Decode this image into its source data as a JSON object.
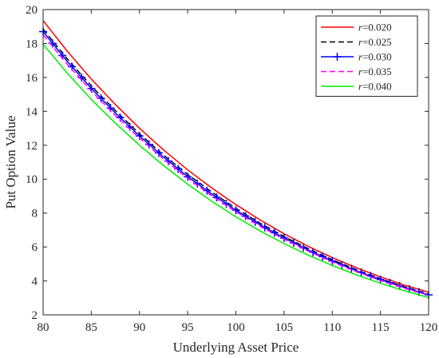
{
  "chart_data": {
    "type": "line",
    "title": "",
    "xlabel": "Underlying Asset Price",
    "ylabel": "Put Option Value",
    "xlim": [
      80,
      120
    ],
    "ylim": [
      2,
      20
    ],
    "x_ticks": [
      80,
      85,
      90,
      95,
      100,
      105,
      110,
      115,
      120
    ],
    "y_ticks": [
      2,
      4,
      6,
      8,
      10,
      12,
      14,
      16,
      18,
      20
    ],
    "grid": false,
    "legend_position": "top-right",
    "x": [
      80,
      82.5,
      85,
      87.5,
      90,
      92.5,
      95,
      97.5,
      100,
      102.5,
      105,
      107.5,
      110,
      112.5,
      115,
      117.5,
      120
    ],
    "series": [
      {
        "name": "r=0.020",
        "color": "#ff0000",
        "dash": "solid",
        "marker": "none",
        "values": [
          19.35,
          17.55,
          15.9,
          14.4,
          13.0,
          11.72,
          10.55,
          9.48,
          8.5,
          7.6,
          6.78,
          6.04,
          5.38,
          4.78,
          4.24,
          3.75,
          3.33
        ]
      },
      {
        "name": "r=0.025",
        "color": "#000000",
        "dash": "dashed",
        "marker": "none",
        "values": [
          18.85,
          17.1,
          15.5,
          14.04,
          12.68,
          11.42,
          10.28,
          9.24,
          8.28,
          7.41,
          6.62,
          5.9,
          5.25,
          4.66,
          4.13,
          3.65,
          3.22
        ]
      },
      {
        "name": "r=0.030",
        "color": "#0000ff",
        "dash": "solid",
        "marker": "plus",
        "values": [
          18.7,
          16.95,
          15.35,
          13.9,
          12.55,
          11.3,
          10.15,
          9.12,
          8.17,
          7.31,
          6.53,
          5.82,
          5.18,
          4.6,
          4.08,
          3.61,
          3.18
        ]
      },
      {
        "name": "r=0.035",
        "color": "#ff00ff",
        "dash": "dashed",
        "marker": "none",
        "values": [
          18.5,
          16.78,
          15.2,
          13.75,
          12.42,
          11.18,
          10.05,
          9.02,
          8.08,
          7.23,
          6.46,
          5.76,
          5.12,
          4.55,
          4.03,
          3.57,
          3.15
        ]
      },
      {
        "name": "r=0.040",
        "color": "#00ee00",
        "dash": "solid",
        "marker": "none",
        "values": [
          17.95,
          16.25,
          14.7,
          13.3,
          12.0,
          10.8,
          9.7,
          8.7,
          7.78,
          6.95,
          6.2,
          5.52,
          4.91,
          4.36,
          3.86,
          3.42,
          3.02
        ]
      }
    ]
  }
}
